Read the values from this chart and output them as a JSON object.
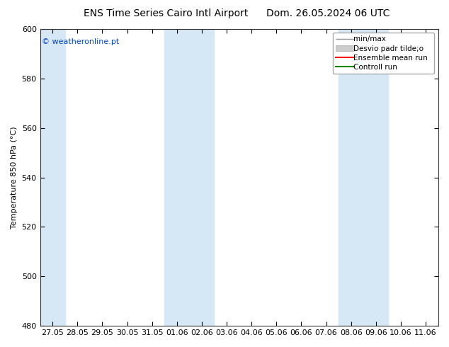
{
  "title_left": "ENS Time Series Cairo Intl Airport",
  "title_right": "Dom. 26.05.2024 06 UTC",
  "ylabel": "Temperature 850 hPa (°C)",
  "ylim": [
    480,
    600
  ],
  "yticks": [
    480,
    500,
    520,
    540,
    560,
    580,
    600
  ],
  "x_tick_labels": [
    "27.05",
    "28.05",
    "29.05",
    "30.05",
    "31.05",
    "01.06",
    "02.06",
    "03.06",
    "04.06",
    "05.06",
    "06.06",
    "07.06",
    "08.06",
    "09.06",
    "10.06",
    "11.06"
  ],
  "band_color": "#d6e8f5",
  "bg_color": "#ffffff",
  "copyright": "© weatheronline.pt",
  "copyright_color": "#0044cc",
  "title_fontsize": 10,
  "axis_fontsize": 8,
  "tick_fontsize": 8,
  "legend_fontsize": 7.5,
  "legend_label_minmax": "min/max",
  "legend_label_desvio": "Desvio padr tilde;o",
  "legend_label_ensemble": "Ensemble mean run",
  "legend_label_control": "Controll run",
  "legend_color_minmax": "#999999",
  "legend_color_desvio": "#cccccc",
  "legend_color_ensemble": "#ff0000",
  "legend_color_control": "#008800"
}
